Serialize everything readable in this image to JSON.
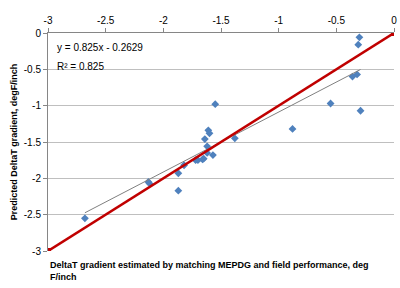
{
  "chart_data": {
    "type": "scatter",
    "xlabel": "DeltaT gradient estimated by matching MEPDG and field performance, deg F/inch",
    "ylabel": "Predicted DeltaT gradient, degF/inch",
    "annotations": [
      "y = 0.825x - 0.2629",
      "R² = 0.825"
    ],
    "xlim": [
      -3,
      0
    ],
    "xticks": [
      -3,
      -2.5,
      -2,
      -1.5,
      -1,
      -0.5,
      0
    ],
    "ylim": [
      -3,
      0
    ],
    "yticks": [
      -3,
      -2.5,
      -2,
      -1.5,
      -1,
      -0.5,
      0
    ],
    "grid": "y",
    "series": [
      {
        "type": "scatter",
        "color": "#4f81bd",
        "marker": "diamond",
        "x": [
          -2.68,
          -2.13,
          -2.12,
          -1.87,
          -1.87,
          -1.82,
          -1.72,
          -1.7,
          -1.66,
          -1.65,
          -1.62,
          -1.64,
          -1.62,
          -1.61,
          -1.6,
          -1.57,
          -1.55,
          -1.38,
          -0.88,
          -0.55,
          -0.36,
          -0.32,
          -0.31,
          -0.3,
          -0.29
        ],
        "values": [
          -2.55,
          -2.05,
          -2.07,
          -2.17,
          -1.93,
          -1.82,
          -1.75,
          -1.75,
          -1.74,
          -1.73,
          -1.65,
          -1.46,
          -1.56,
          -1.34,
          -1.38,
          -1.68,
          -0.98,
          -1.45,
          -1.32,
          -0.97,
          -0.6,
          -0.57,
          -0.16,
          -0.06,
          -1.07
        ]
      },
      {
        "type": "line",
        "color": "#808080",
        "line_style": "solid",
        "x": [
          -2.68,
          -0.29
        ],
        "values": [
          -2.474,
          -0.502
        ]
      },
      {
        "type": "line",
        "color": "#c00000",
        "line_style": "solid",
        "marker": "square",
        "x": [
          -3,
          0
        ],
        "values": [
          -3,
          0
        ]
      }
    ]
  }
}
